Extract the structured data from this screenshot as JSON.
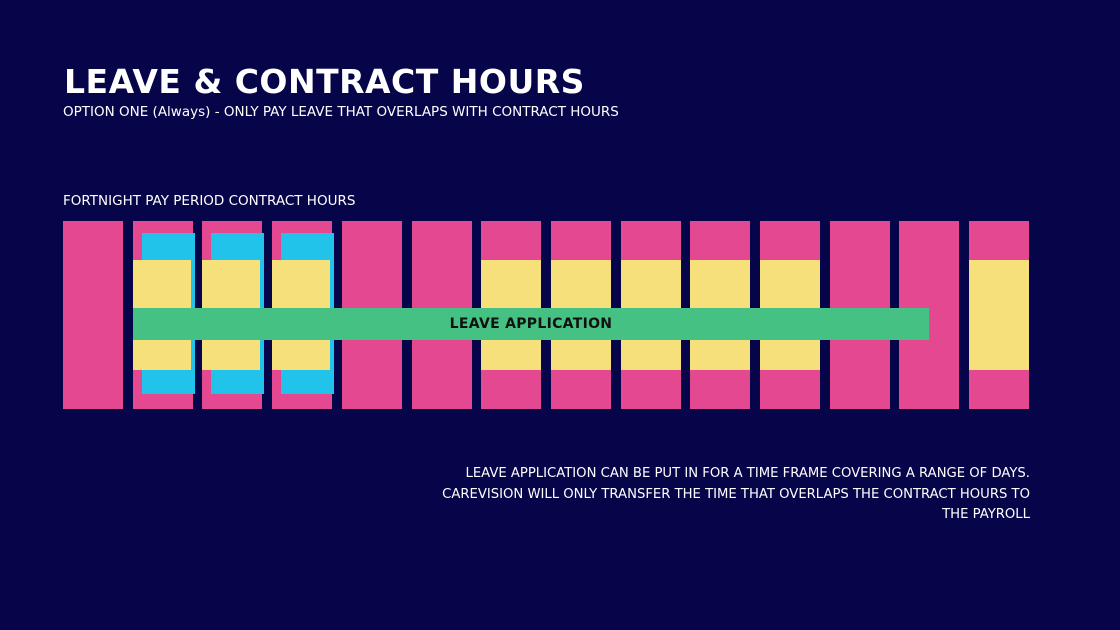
{
  "slide": {
    "title": "LEAVE & CONTRACT HOURS",
    "subtitle": "OPTION ONE (Always) - ONLY PAY LEAVE THAT OVERLAPS WITH CONTRACT HOURS",
    "period_label": "FORTNIGHT PAY PERIOD CONTRACT HOURS",
    "leave_label": "LEAVE APPLICATION",
    "note": "LEAVE APPLICATION CAN BE PUT IN FOR A TIME FRAME COVERING A RANGE OF DAYS. CAREVISION WILL ONLY TRANSFER THE TIME THAT OVERLAPS THE CONTRACT HOURS TO THE PAYROLL"
  },
  "colors": {
    "background": "#07054a",
    "day": "#e44890",
    "contract_hours": "#f6e07c",
    "paid_overlap": "#22c3ea",
    "leave_application": "#46c184",
    "text": "#ffffff",
    "leave_text": "#111111"
  },
  "diagram": {
    "day_count": 14,
    "days_with_contract_hours": [
      2,
      3,
      4,
      7,
      8,
      9,
      10,
      11,
      14
    ],
    "days_with_paid_overlap": [
      2,
      3,
      4
    ]
  }
}
